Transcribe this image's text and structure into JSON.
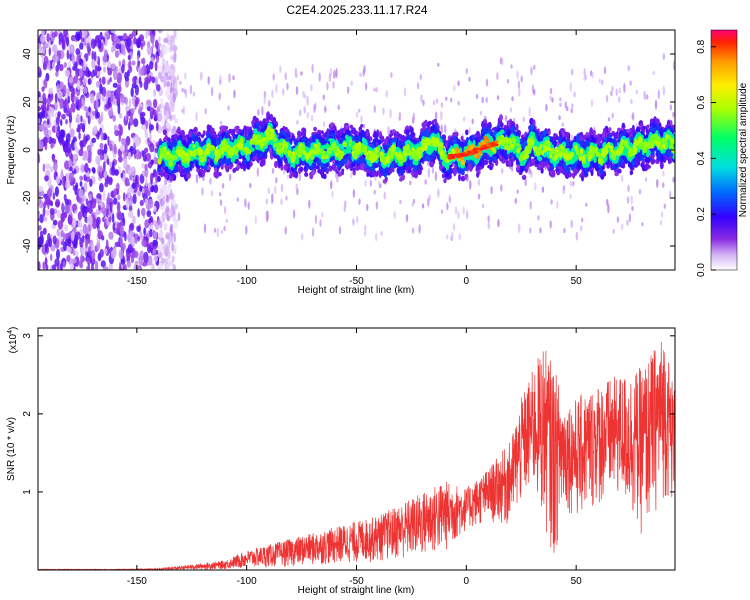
{
  "title": "C2E4.2025.233.11.17.R24",
  "chart_data": [
    {
      "type": "heatmap",
      "name": "spectrogram",
      "xlabel": "Height of straight line (km)",
      "ylabel": "Frequency (Hz)",
      "xlim": [
        -195,
        95
      ],
      "ylim": [
        -50,
        50
      ],
      "x_ticks": [
        -150,
        -100,
        -50,
        0,
        50
      ],
      "y_ticks": [
        -40,
        -20,
        0,
        20,
        40
      ],
      "colorbar": {
        "label": "Normalized spectral amplitude",
        "range": [
          0.0,
          0.86
        ],
        "ticks": [
          0.0,
          0.2,
          0.4,
          0.6,
          0.8
        ]
      },
      "ridge_center_hz": {
        "x": [
          -140,
          -130,
          -120,
          -110,
          -100,
          -90,
          -85,
          -80,
          -70,
          -60,
          -50,
          -40,
          -30,
          -20,
          -15,
          -10,
          0,
          10,
          20,
          25,
          30,
          40,
          50,
          60,
          70,
          80,
          90,
          95
        ],
        "y": [
          -3,
          -2,
          -1,
          0,
          1,
          6,
          2,
          -2,
          -1,
          0,
          1,
          -3,
          -2,
          0,
          5,
          -3,
          -2,
          2,
          4,
          -2,
          2,
          -1,
          -2,
          -2,
          0,
          2,
          4,
          1
        ]
      },
      "noise_region_x": [
        -195,
        -140
      ]
    },
    {
      "type": "line",
      "name": "snr",
      "xlabel": "Height of straight line (km)",
      "ylabel": "SNR (10 * v/v)",
      "y_scale_label": "(x10",
      "y_scale_exponent": "4",
      "xlim": [
        -195,
        95
      ],
      "ylim": [
        0,
        3.1
      ],
      "x_ticks": [
        -150,
        -100,
        -50,
        0,
        50
      ],
      "y_ticks": [
        1,
        2,
        3
      ],
      "color": "#ee3333",
      "envelope": {
        "x": [
          -195,
          -160,
          -140,
          -130,
          -110,
          -100,
          -80,
          -60,
          -40,
          -20,
          -10,
          0,
          10,
          20,
          25,
          30,
          35,
          40,
          45,
          50,
          60,
          70,
          80,
          90,
          95
        ],
        "low": [
          0,
          0,
          0,
          0,
          0.01,
          0.02,
          0.04,
          0.07,
          0.1,
          0.15,
          0.2,
          0.5,
          0.6,
          0.55,
          0.8,
          1.0,
          0.6,
          0.1,
          0.8,
          0.6,
          0.8,
          0.9,
          0.4,
          0.9,
          0.8
        ],
        "high": [
          0.01,
          0.01,
          0.02,
          0.05,
          0.12,
          0.25,
          0.4,
          0.55,
          0.7,
          1.0,
          1.15,
          1.05,
          1.3,
          1.65,
          2.2,
          2.55,
          2.9,
          2.6,
          2.15,
          2.2,
          2.4,
          2.5,
          2.6,
          3.05,
          2.3
        ]
      },
      "peak": {
        "x": 87,
        "y": 3.05
      }
    }
  ]
}
